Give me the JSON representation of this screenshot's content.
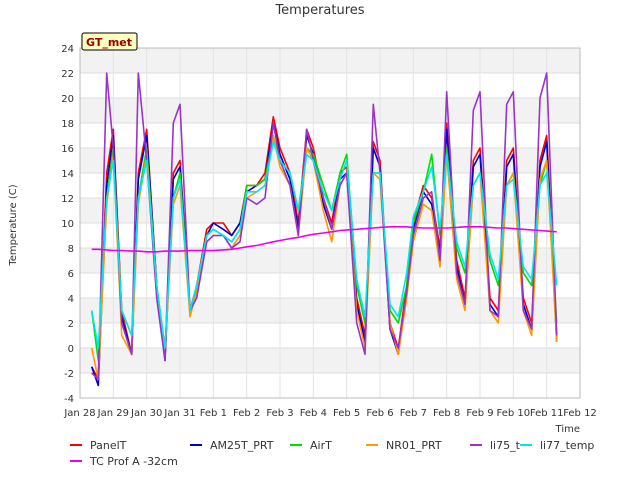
{
  "chart_data": {
    "type": "line",
    "title": "Temperatures",
    "xlabel": "Time",
    "ylabel": "Temperature (C)",
    "xlim": [
      0,
      15
    ],
    "ylim": [
      -4,
      24
    ],
    "yticks": [
      -4,
      -2,
      0,
      2,
      4,
      6,
      8,
      10,
      12,
      14,
      16,
      18,
      20,
      22,
      24
    ],
    "xticks": [
      {
        "x": 0,
        "label": "Jan 28"
      },
      {
        "x": 1,
        "label": "Jan 29"
      },
      {
        "x": 2,
        "label": "Jan 30"
      },
      {
        "x": 3,
        "label": "Jan 31"
      },
      {
        "x": 4,
        "label": "Feb 1"
      },
      {
        "x": 5,
        "label": "Feb 2"
      },
      {
        "x": 6,
        "label": "Feb 3"
      },
      {
        "x": 7,
        "label": "Feb 4"
      },
      {
        "x": 8,
        "label": "Feb 5"
      },
      {
        "x": 9,
        "label": "Feb 6"
      },
      {
        "x": 10,
        "label": "Feb 7"
      },
      {
        "x": 11,
        "label": "Feb 8"
      },
      {
        "x": 12,
        "label": "Feb 9"
      },
      {
        "x": 13,
        "label": "Feb 10"
      },
      {
        "x": 14,
        "label": "Feb 11"
      },
      {
        "x": 15,
        "label": "Feb 12"
      }
    ],
    "grid": true,
    "legend_position": "bottom",
    "site_label": "GT_met",
    "x": [
      0.35,
      0.55,
      0.8,
      1.0,
      1.25,
      1.55,
      1.75,
      2.0,
      2.3,
      2.55,
      2.8,
      3.0,
      3.3,
      3.5,
      3.8,
      4.0,
      4.3,
      4.55,
      4.8,
      5.0,
      5.3,
      5.55,
      5.8,
      6.0,
      6.3,
      6.55,
      6.8,
      7.0,
      7.3,
      7.55,
      7.8,
      8.0,
      8.3,
      8.55,
      8.8,
      9.0,
      9.3,
      9.55,
      9.8,
      10.0,
      10.3,
      10.55,
      10.8,
      11.0,
      11.3,
      11.55,
      11.8,
      12.0,
      12.3,
      12.55,
      12.8,
      13.0,
      13.3,
      13.55,
      13.8,
      14.0,
      14.3
    ],
    "series": [
      {
        "name": "PanelT",
        "color": "#ff0000",
        "values": [
          -1.5,
          -2.5,
          14,
          17.5,
          3,
          -0.5,
          14,
          17.5,
          5,
          -0.5,
          14,
          15,
          3,
          5,
          9.5,
          10,
          10,
          9,
          10,
          13,
          13,
          14,
          18.5,
          16,
          14,
          10,
          17.5,
          16,
          12,
          10,
          14,
          14.5,
          4,
          1,
          16.5,
          15,
          2,
          0,
          5,
          10,
          13,
          12,
          8,
          18,
          7,
          4,
          15,
          16,
          4,
          3,
          15,
          16,
          4,
          2,
          15,
          17,
          1
        ]
      },
      {
        "name": "AM25T_PRT",
        "color": "#0000cc",
        "values": [
          -1.5,
          -3,
          13,
          17,
          2.5,
          -0.5,
          13.5,
          17,
          5,
          -1,
          13.5,
          14.5,
          3,
          4.5,
          9,
          10,
          9.5,
          9,
          10,
          12.5,
          13,
          13.5,
          18,
          15.5,
          13.5,
          9.5,
          17,
          15.5,
          11.5,
          9.5,
          13.5,
          14,
          3.5,
          0.5,
          16,
          14.5,
          1.5,
          -0.5,
          4.5,
          9.5,
          12.5,
          11.5,
          7.5,
          17.5,
          6.5,
          3.5,
          14.5,
          15.5,
          3.5,
          2.5,
          14.5,
          15.5,
          3.5,
          1.5,
          14.5,
          16.5,
          0.5
        ]
      },
      {
        "name": "AirT",
        "color": "#00dd00",
        "values": [
          3,
          -1,
          12,
          16,
          3,
          1,
          12,
          16,
          5,
          0,
          12,
          14,
          3,
          5,
          9,
          9.5,
          9,
          8.5,
          9.5,
          13,
          13,
          13.5,
          17,
          15,
          14,
          11,
          16,
          15.5,
          13,
          11,
          14,
          15.5,
          5,
          2,
          14,
          14,
          3,
          2,
          5,
          10,
          12.5,
          15.5,
          9,
          16,
          8,
          6,
          13,
          14,
          7,
          5,
          13,
          14,
          6,
          5,
          13,
          15,
          2
        ]
      },
      {
        "name": "NR01_PRT",
        "color": "#ff9900",
        "values": [
          0,
          -2.5,
          11.5,
          15.5,
          1,
          -0.5,
          11.5,
          15.5,
          4.5,
          -0.5,
          11.5,
          13,
          2.5,
          4.5,
          8.5,
          9,
          9,
          8,
          9,
          12,
          12.5,
          13,
          17,
          14.5,
          13,
          9,
          16,
          15,
          11,
          8.5,
          13,
          14,
          3,
          0,
          14,
          13.5,
          2,
          -0.5,
          4,
          8.5,
          11.5,
          11,
          6.5,
          15.5,
          5.5,
          3,
          13,
          14,
          3,
          2,
          13,
          14,
          3,
          1,
          13.5,
          15,
          0.5
        ]
      },
      {
        "name": "li75_t",
        "color": "#9933cc",
        "values": [
          -2,
          -2.5,
          22,
          16,
          2,
          -0.5,
          22,
          15,
          4,
          -1,
          18,
          19.5,
          3,
          4,
          8.5,
          9,
          9,
          8,
          8.5,
          12,
          11.5,
          12,
          18,
          15,
          13,
          9,
          17.5,
          15,
          12,
          9.5,
          13,
          14,
          2,
          -0.5,
          19.5,
          14,
          1.5,
          0,
          4.5,
          9,
          12,
          12.5,
          7,
          20.5,
          6,
          3.5,
          19,
          20.5,
          3,
          2.5,
          19.5,
          20.5,
          3,
          1.5,
          20,
          22,
          1
        ]
      },
      {
        "name": "li77_temp",
        "color": "#00e5ee",
        "values": [
          3,
          0,
          12,
          15,
          3,
          1,
          12,
          15,
          5,
          0,
          12,
          13.5,
          3,
          5,
          9,
          9.5,
          9,
          8.5,
          9.5,
          12.5,
          12.5,
          13,
          16.5,
          15,
          14,
          11,
          15.5,
          15,
          12.5,
          11,
          13.5,
          15,
          5.5,
          2.5,
          14,
          14,
          3.5,
          2.5,
          6,
          10.5,
          12.5,
          14.5,
          9.5,
          15.5,
          8.5,
          6.5,
          13,
          14,
          7.5,
          5.5,
          13,
          13.5,
          6.5,
          5.5,
          13,
          14,
          5
        ]
      },
      {
        "name": "TC Prof A -32cm",
        "color": "#ee00ee",
        "values": [
          7.9,
          7.9,
          7.85,
          7.8,
          7.8,
          7.75,
          7.75,
          7.7,
          7.7,
          7.75,
          7.75,
          7.75,
          7.8,
          7.8,
          7.8,
          7.8,
          7.85,
          7.9,
          8.0,
          8.1,
          8.2,
          8.35,
          8.5,
          8.6,
          8.75,
          8.85,
          9.0,
          9.1,
          9.2,
          9.3,
          9.4,
          9.45,
          9.5,
          9.55,
          9.6,
          9.65,
          9.7,
          9.7,
          9.7,
          9.65,
          9.6,
          9.6,
          9.6,
          9.6,
          9.65,
          9.7,
          9.7,
          9.7,
          9.65,
          9.6,
          9.6,
          9.55,
          9.5,
          9.45,
          9.4,
          9.35,
          9.3
        ]
      }
    ]
  }
}
